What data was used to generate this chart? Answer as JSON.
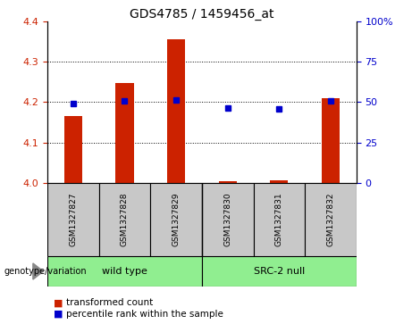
{
  "title": "GDS4785 / 1459456_at",
  "samples": [
    "GSM1327827",
    "GSM1327828",
    "GSM1327829",
    "GSM1327830",
    "GSM1327831",
    "GSM1327832"
  ],
  "red_values": [
    4.165,
    4.248,
    4.355,
    4.005,
    4.007,
    4.21
  ],
  "blue_values": [
    4.197,
    4.202,
    4.205,
    4.185,
    4.183,
    4.202
  ],
  "ylim_left": [
    4.0,
    4.4
  ],
  "ylim_right": [
    0,
    100
  ],
  "yticks_left": [
    4.0,
    4.1,
    4.2,
    4.3,
    4.4
  ],
  "yticks_right": [
    0,
    25,
    50,
    75,
    100
  ],
  "ytick_labels_right": [
    "0",
    "25",
    "50",
    "75",
    "100%"
  ],
  "group_label_prefix": "genotype/variation",
  "bar_color": "#CC2200",
  "dot_color": "#0000CC",
  "bar_width": 0.35,
  "label_box_color": "#C8C8C8",
  "group_colors": [
    "#90EE90",
    "#90EE90"
  ],
  "group_labels": [
    "wild type",
    "SRC-2 null"
  ],
  "legend_red_label": "transformed count",
  "legend_blue_label": "percentile rank within the sample",
  "title_fontsize": 10,
  "tick_fontsize": 8,
  "sample_fontsize": 6.5
}
